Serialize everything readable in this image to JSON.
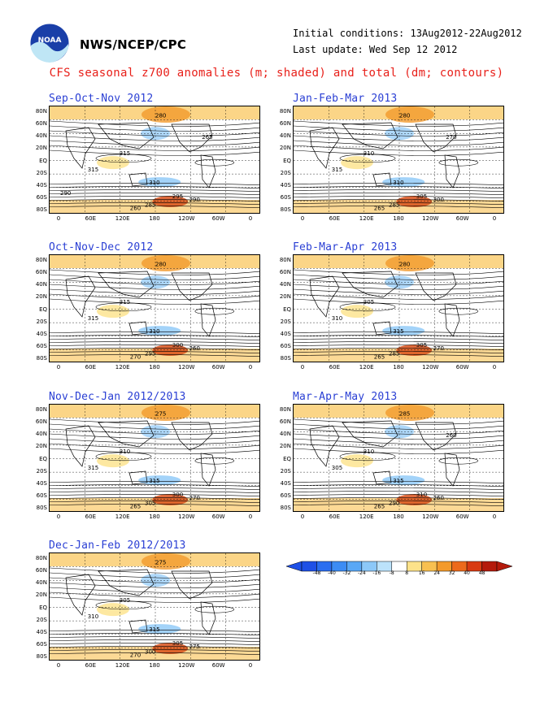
{
  "header": {
    "org": "NWS/NCEP/CPC",
    "initial": "Initial conditions: 13Aug2012-22Aug2012",
    "update": "Last update: Wed Sep 12 2012",
    "title": "CFS seasonal z700 anomalies (m; shaded) and total (dm; contours)",
    "logo_text": "NOAA"
  },
  "axes": {
    "lat_labels": [
      "80N",
      "60N",
      "40N",
      "20N",
      "EQ",
      "20S",
      "40S",
      "60S",
      "80S"
    ],
    "lon_labels": [
      "0",
      "60E",
      "120E",
      "180",
      "120W",
      "60W",
      "0"
    ]
  },
  "panels": [
    {
      "title": "Sep-Oct-Nov 2012",
      "labels": [
        "280",
        "315",
        "315",
        "310",
        "295",
        "285",
        "290",
        "260",
        "265",
        "290"
      ]
    },
    {
      "title": "Jan-Feb-Mar 2013",
      "labels": [
        "280",
        "310",
        "315",
        "310",
        "305",
        "285",
        "300",
        "265",
        "270"
      ]
    },
    {
      "title": "Oct-Nov-Dec 2012",
      "labels": [
        "280",
        "315",
        "315",
        "310",
        "300",
        "295",
        "260",
        "270"
      ]
    },
    {
      "title": "Feb-Mar-Apr 2013",
      "labels": [
        "280",
        "305",
        "310",
        "315",
        "305",
        "285",
        "270",
        "265"
      ]
    },
    {
      "title": "Nov-Dec-Jan 2012/2013",
      "labels": [
        "275",
        "310",
        "315",
        "315",
        "300",
        "305",
        "270",
        "265"
      ]
    },
    {
      "title": "Mar-Apr-May 2013",
      "labels": [
        "285",
        "310",
        "305",
        "315",
        "310",
        "290",
        "260",
        "265",
        "260"
      ]
    },
    {
      "title": "Dec-Jan-Feb 2012/2013",
      "labels": [
        "275",
        "305",
        "310",
        "315",
        "305",
        "300",
        "275",
        "270"
      ]
    }
  ],
  "colorbar": {
    "labels": [
      "-48",
      "-40",
      "-32",
      "-24",
      "-16",
      "-8",
      "8",
      "16",
      "24",
      "32",
      "40",
      "48"
    ],
    "colors": [
      "#1e50e6",
      "#2a6ef0",
      "#3c8cf4",
      "#5aa8f6",
      "#8cc8f8",
      "#bce2fa",
      "#ffffff",
      "#fde28a",
      "#f8c050",
      "#f39a2c",
      "#ec6a1c",
      "#d83a12",
      "#b41a0c"
    ]
  }
}
